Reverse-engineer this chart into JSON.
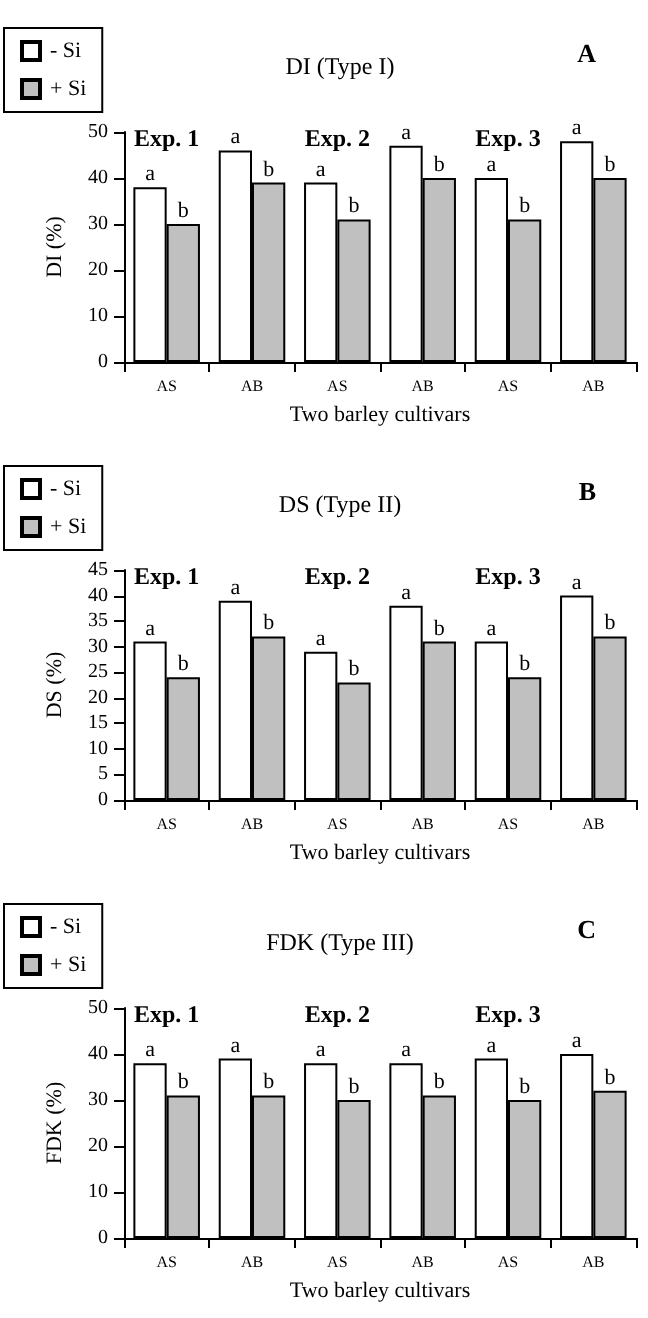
{
  "chart_data": [
    {
      "type": "bar",
      "title": "DI (Type I)",
      "xlabel": "Two barley cultivars",
      "ylabel": "DI (%)",
      "annotations": [
        "A",
        "Exp. 1",
        "Exp. 2",
        "Exp. 3"
      ],
      "categories": [
        "AS",
        "AB",
        "AS",
        "AB",
        "AS",
        "AB"
      ],
      "series": [
        {
          "name": "- Si",
          "color": "#ffffff",
          "values": [
            38,
            46,
            39,
            47,
            40,
            48
          ],
          "value_labels": [
            "a",
            "a",
            "a",
            "a",
            "a",
            "a"
          ]
        },
        {
          "name": "+ Si",
          "color": "#c0c0c0",
          "values": [
            30,
            39,
            31,
            40,
            31,
            40
          ],
          "value_labels": [
            "b",
            "b",
            "b",
            "b",
            "b",
            "b"
          ]
        }
      ],
      "ylim": [
        0,
        50
      ],
      "yticks": [
        0,
        10,
        20,
        30,
        40,
        50
      ],
      "grid": false,
      "legend": "top left"
    },
    {
      "type": "bar",
      "title": "DS (Type II)",
      "xlabel": "Two barley cultivars",
      "ylabel": "DS (%)",
      "annotations": [
        "B",
        "Exp. 1",
        "Exp. 2",
        "Exp. 3"
      ],
      "categories": [
        "AS",
        "AB",
        "AS",
        "AB",
        "AS",
        "AB"
      ],
      "series": [
        {
          "name": "- Si",
          "color": "#ffffff",
          "values": [
            31,
            39,
            29,
            38,
            31,
            40
          ],
          "value_labels": [
            "a",
            "a",
            "a",
            "a",
            "a",
            "a"
          ]
        },
        {
          "name": "+ Si",
          "color": "#c0c0c0",
          "values": [
            24,
            32,
            23,
            31,
            24,
            32
          ],
          "value_labels": [
            "b",
            "b",
            "b",
            "b",
            "b",
            "b"
          ]
        }
      ],
      "ylim": [
        0,
        45
      ],
      "yticks": [
        0,
        5,
        10,
        15,
        20,
        25,
        30,
        35,
        40,
        45
      ],
      "grid": false,
      "legend": "top left"
    },
    {
      "type": "bar",
      "title": "FDK (Type III)",
      "xlabel": "Two barley cultivars",
      "ylabel": "FDK (%)",
      "annotations": [
        "C",
        "Exp. 1",
        "Exp. 2",
        "Exp. 3"
      ],
      "categories": [
        "AS",
        "AB",
        "AS",
        "AB",
        "AS",
        "AB"
      ],
      "series": [
        {
          "name": "- Si",
          "color": "#ffffff",
          "values": [
            38,
            39,
            38,
            38,
            39,
            40
          ],
          "value_labels": [
            "a",
            "a",
            "a",
            "a",
            "a",
            "a"
          ]
        },
        {
          "name": "+ Si",
          "color": "#c0c0c0",
          "values": [
            31,
            31,
            30,
            31,
            30,
            32
          ],
          "value_labels": [
            "b",
            "b",
            "b",
            "b",
            "b",
            "b"
          ]
        }
      ],
      "ylim": [
        0,
        50
      ],
      "yticks": [
        0,
        10,
        20,
        30,
        40,
        50
      ],
      "grid": false,
      "legend": "top left"
    }
  ]
}
